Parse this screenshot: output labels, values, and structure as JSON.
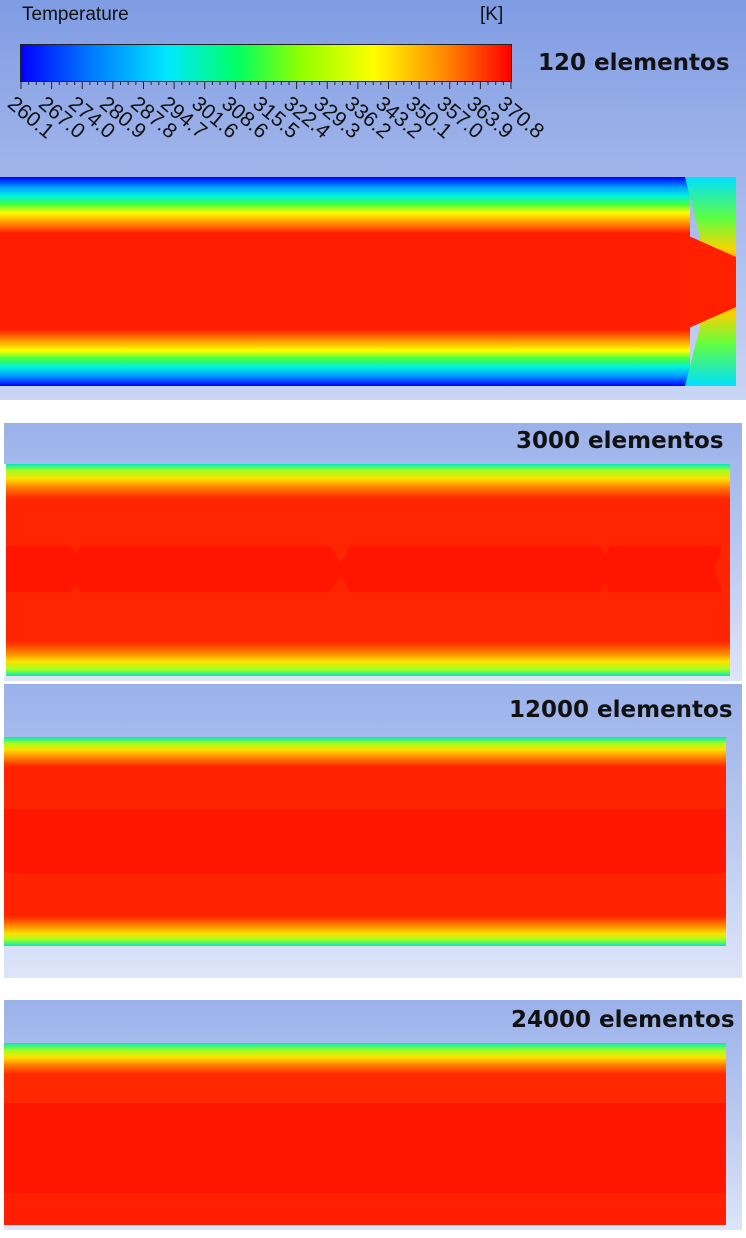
{
  "legend": {
    "title": "Temperature",
    "unit": "[K]",
    "ticks": [
      "260.1",
      "267.0",
      "274.0",
      "280.9",
      "287.8",
      "294.7",
      "301.6",
      "308.6",
      "315.5",
      "322.4",
      "329.3",
      "336.2",
      "343.2",
      "350.1",
      "357.0",
      "363.9",
      "370.8"
    ],
    "colors": [
      "#0000ff",
      "#00e8ff",
      "#00ff64",
      "#ffff00",
      "#ff8c00",
      "#ff0000"
    ]
  },
  "panels": [
    {
      "label": "120 elementos"
    },
    {
      "label": "3000 elementos"
    },
    {
      "label": "12000 elementos"
    },
    {
      "label": "24000 elementos"
    }
  ]
}
